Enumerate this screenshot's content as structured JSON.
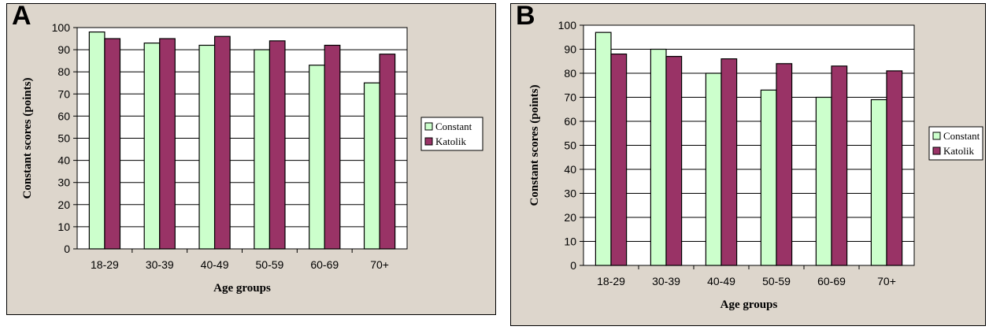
{
  "chart_data": [
    {
      "type": "bar",
      "panel_label": "A",
      "categories": [
        "18-29",
        "30-39",
        "40-49",
        "50-59",
        "60-69",
        "70+"
      ],
      "series": [
        {
          "name": "Constant",
          "values": [
            98,
            93,
            92,
            90,
            83,
            75
          ],
          "color": "#ccffcc"
        },
        {
          "name": "Katolik",
          "values": [
            95,
            95,
            96,
            94,
            92,
            88
          ],
          "color": "#993366"
        }
      ],
      "xlabel": "Age groups",
      "ylabel": "Constant scores (points)",
      "ylim": [
        0,
        100
      ],
      "yticks": [
        0,
        10,
        20,
        30,
        40,
        50,
        60,
        70,
        80,
        90,
        100
      ],
      "grid": true,
      "legend": "right"
    },
    {
      "type": "bar",
      "panel_label": "B",
      "categories": [
        "18-29",
        "30-39",
        "40-49",
        "50-59",
        "60-69",
        "70+"
      ],
      "series": [
        {
          "name": "Constant",
          "values": [
            97,
            90,
            80,
            73,
            70,
            69
          ],
          "color": "#ccffcc"
        },
        {
          "name": "Katolik",
          "values": [
            88,
            87,
            86,
            84,
            83,
            81
          ],
          "color": "#993366"
        }
      ],
      "xlabel": "Age groups",
      "ylabel": "Constant scores (points)",
      "ylim": [
        0,
        100
      ],
      "yticks": [
        0,
        10,
        20,
        30,
        40,
        50,
        60,
        70,
        80,
        90,
        100
      ],
      "grid": true,
      "legend": "right"
    }
  ]
}
